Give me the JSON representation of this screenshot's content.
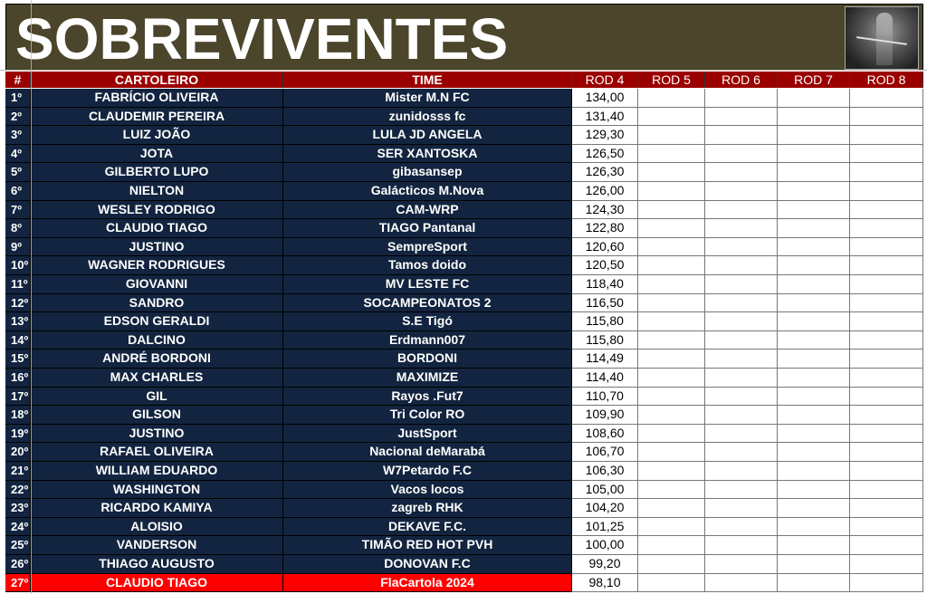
{
  "title": "SOBREVIVENTES",
  "image": "grim-reaper-picture",
  "colors": {
    "banner": "#4b452b",
    "header": "#9b0000",
    "row": "#12243f",
    "highlight": "#ff0000"
  },
  "headers": [
    "#",
    "CARTOLEIRO",
    "TIME",
    "ROD 4",
    "ROD 5",
    "ROD 6",
    "ROD 7",
    "ROD 8"
  ],
  "rows": [
    {
      "pos": "1º",
      "name": "FABRÍCIO OLIVEIRA",
      "team": "Mister M.N FC",
      "rod4": "134,00"
    },
    {
      "pos": "2º",
      "name": "CLAUDEMIR PEREIRA",
      "team": "zunidosss fc",
      "rod4": "131,40"
    },
    {
      "pos": "3º",
      "name": "LUIZ JOÃO",
      "team": "LULA JD ANGELA",
      "rod4": "129,30"
    },
    {
      "pos": "4º",
      "name": "JOTA",
      "team": "SER XANTOSKA",
      "rod4": "126,50"
    },
    {
      "pos": "5º",
      "name": "GILBERTO LUPO",
      "team": "gibasansep",
      "rod4": "126,30"
    },
    {
      "pos": "6º",
      "name": "NIELTON",
      "team": "Galácticos M.Nova",
      "rod4": "126,00"
    },
    {
      "pos": "7º",
      "name": "WESLEY RODRIGO",
      "team": "CAM-WRP",
      "rod4": "124,30"
    },
    {
      "pos": "8º",
      "name": "CLAUDIO TIAGO",
      "team": "TIAGO Pantanal",
      "rod4": "122,80"
    },
    {
      "pos": "9º",
      "name": "JUSTINO",
      "team": "SempreSport",
      "rod4": "120,60"
    },
    {
      "pos": "10º",
      "name": "WAGNER RODRIGUES",
      "team": "Tamos doido",
      "rod4": "120,50"
    },
    {
      "pos": "11º",
      "name": "GIOVANNI",
      "team": "MV LESTE FC",
      "rod4": "118,40"
    },
    {
      "pos": "12º",
      "name": "SANDRO",
      "team": "SOCAMPEONATOS 2",
      "rod4": "116,50"
    },
    {
      "pos": "13º",
      "name": "EDSON GERALDI",
      "team": "S.E Tigó",
      "rod4": "115,80"
    },
    {
      "pos": "14º",
      "name": "DALCINO",
      "team": "Erdmann007",
      "rod4": "115,80"
    },
    {
      "pos": "15º",
      "name": "ANDRÉ BORDONI",
      "team": "BORDONI",
      "rod4": "114,49"
    },
    {
      "pos": "16º",
      "name": "MAX CHARLES",
      "team": "MAXIMIZE",
      "rod4": "114,40"
    },
    {
      "pos": "17º",
      "name": "GIL",
      "team": "Rayos .Fut7",
      "rod4": "110,70"
    },
    {
      "pos": "18º",
      "name": "GILSON",
      "team": "Tri Color RO",
      "rod4": "109,90"
    },
    {
      "pos": "19º",
      "name": "JUSTINO",
      "team": "JustSport",
      "rod4": "108,60"
    },
    {
      "pos": "20º",
      "name": "RAFAEL OLIVEIRA",
      "team": "Nacional deMarabá",
      "rod4": "106,70"
    },
    {
      "pos": "21º",
      "name": "WILLIAM EDUARDO",
      "team": "W7Petardo F.C",
      "rod4": "106,30"
    },
    {
      "pos": "22º",
      "name": "WASHINGTON",
      "team": "Vacos locos",
      "rod4": "105,00"
    },
    {
      "pos": "23º",
      "name": "RICARDO KAMIYA",
      "team": "zagreb RHK",
      "rod4": "104,20"
    },
    {
      "pos": "24º",
      "name": "ALOISIO",
      "team": "DEKAVE F.C.",
      "rod4": "101,25"
    },
    {
      "pos": "25º",
      "name": "VANDERSON",
      "team": "TIMÃO RED HOT PVH",
      "rod4": "100,00"
    },
    {
      "pos": "26º",
      "name": "THIAGO AUGUSTO",
      "team": "DONOVAN F.C",
      "rod4": "99,20"
    },
    {
      "pos": "27º",
      "name": "CLAUDIO TIAGO",
      "team": "FlaCartola 2024",
      "rod4": "98,10",
      "highlight": true
    }
  ]
}
